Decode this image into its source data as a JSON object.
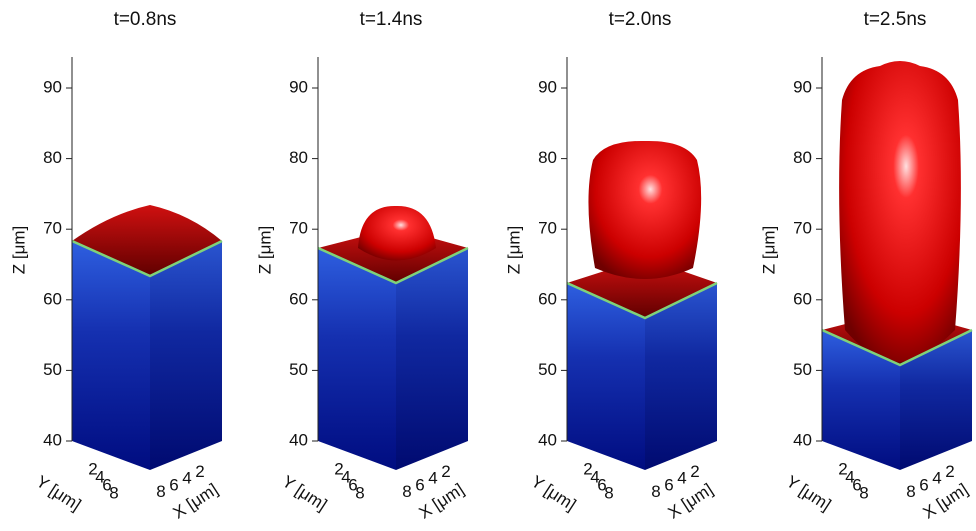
{
  "panels": [
    {
      "title": "t=0.8ns"
    },
    {
      "title": "t=1.4ns"
    },
    {
      "title": "t=2.0ns"
    },
    {
      "title": "t=2.5ns"
    }
  ],
  "z_axis": {
    "label": "Z [μm]",
    "ticks": [
      40,
      50,
      60,
      70,
      80,
      90
    ]
  },
  "y_axis": {
    "label": "Y [μm]",
    "ticks": [
      2,
      4,
      6,
      8
    ]
  },
  "x_axis": {
    "label": "X [μm]",
    "ticks": [
      8,
      6,
      4,
      2
    ]
  }
}
